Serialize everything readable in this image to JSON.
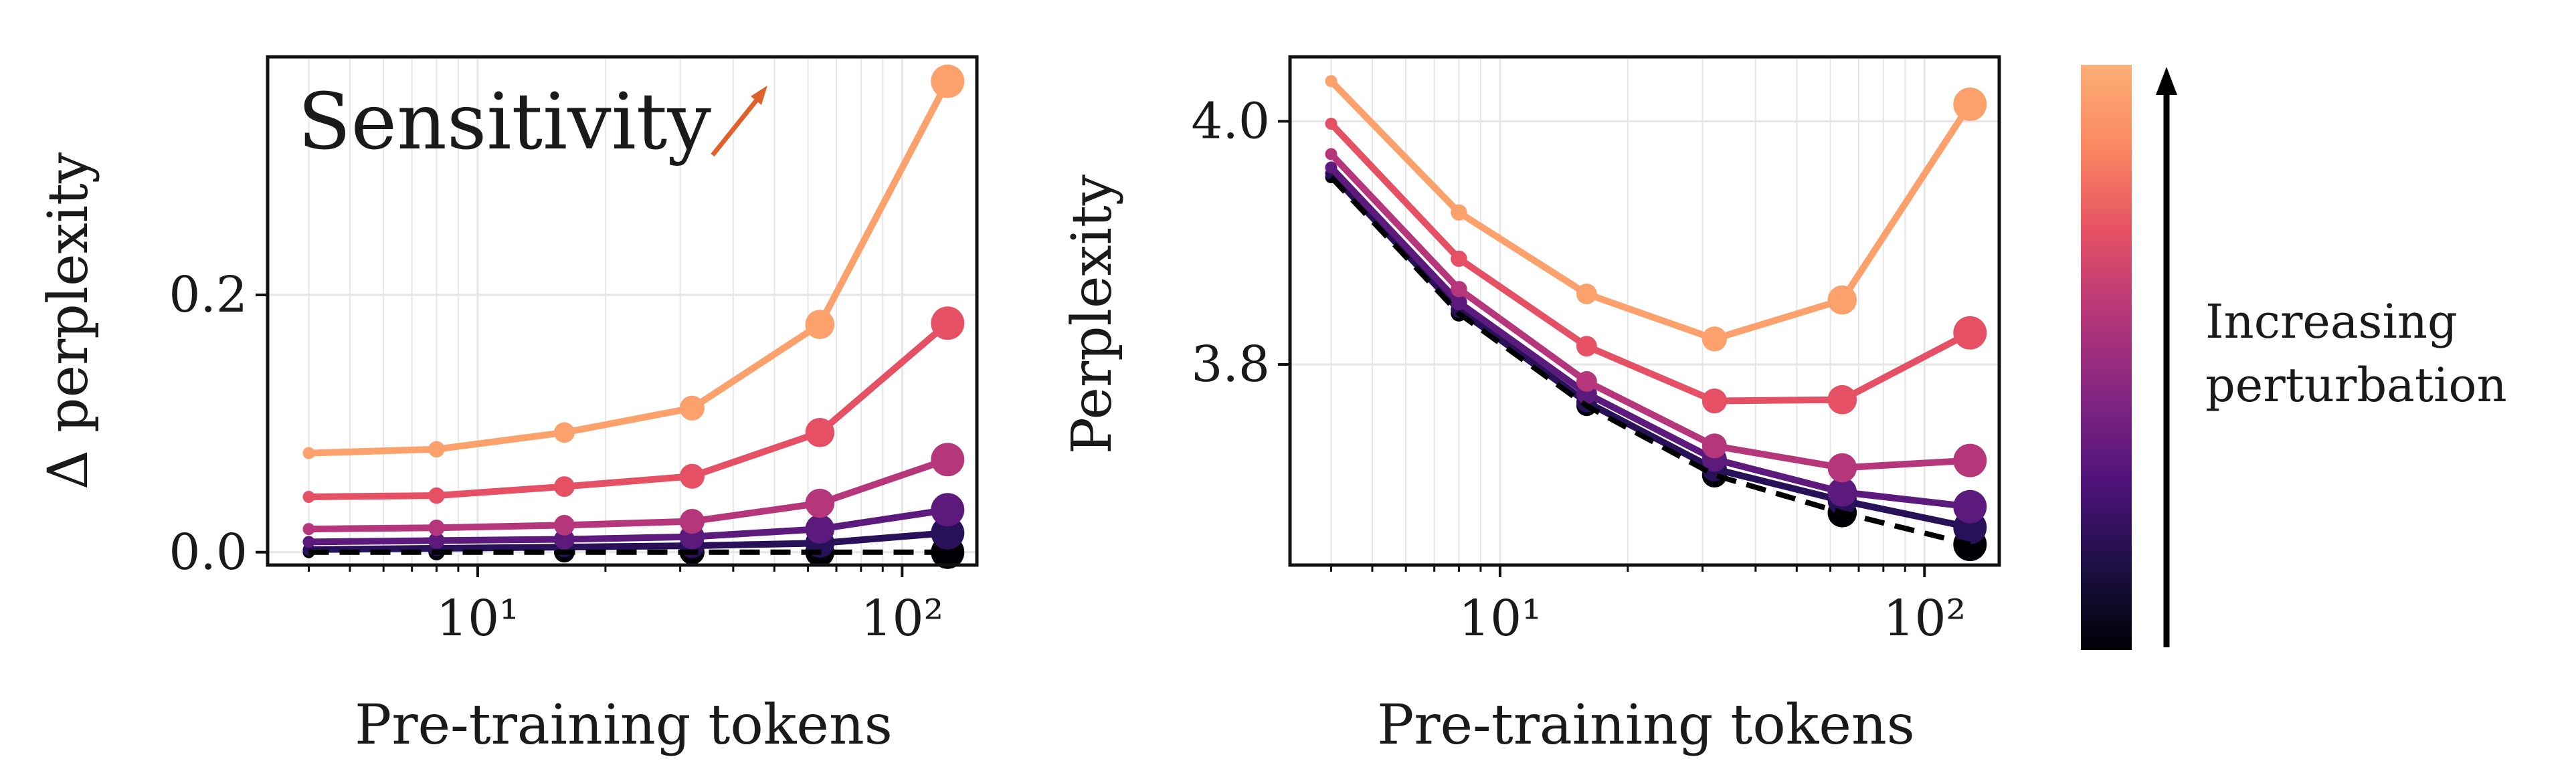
{
  "colors": {
    "sensitivity": "#e0622a",
    "dashed_baseline": "#000000",
    "grid": "#e6e6e6",
    "colorbar": [
      "#000004",
      "#1c1044",
      "#4f127b",
      "#812581",
      "#b5367a",
      "#e55064",
      "#fb8761",
      "#fcae75"
    ]
  },
  "sensitivity_label": "Sensitivity",
  "colorbar_label_line1": "Increasing",
  "colorbar_label_line2": "perturbation",
  "chart_data": [
    {
      "type": "line",
      "xlabel": "Pre-training tokens",
      "ylabel": "Δ perplexity",
      "xscale": "log",
      "xlim": [
        3.2,
        150
      ],
      "ylim": [
        -0.01,
        0.385
      ],
      "xticks": [
        {
          "value": 10,
          "label": "10¹"
        },
        {
          "value": 100,
          "label": "10²"
        }
      ],
      "yticks": [
        {
          "value": 0.0,
          "label": "0.0"
        },
        {
          "value": 0.2,
          "label": "0.2"
        }
      ],
      "grid": true,
      "x": [
        4,
        8,
        16,
        32,
        64,
        128
      ],
      "series": [
        {
          "color": "#000004",
          "dashed": true,
          "values": [
            0.0,
            0.0,
            0.0,
            0.0,
            0.0,
            0.0
          ]
        },
        {
          "color": "#29115a",
          "values": [
            0.002,
            0.003,
            0.004,
            0.005,
            0.007,
            0.015
          ]
        },
        {
          "color": "#5c1a7c",
          "values": [
            0.008,
            0.009,
            0.01,
            0.012,
            0.018,
            0.033
          ]
        },
        {
          "color": "#b5367a",
          "values": [
            0.018,
            0.019,
            0.021,
            0.024,
            0.038,
            0.072
          ]
        },
        {
          "color": "#e55064",
          "values": [
            0.043,
            0.044,
            0.051,
            0.059,
            0.093,
            0.178
          ]
        },
        {
          "color": "#fca06c",
          "values": [
            0.077,
            0.08,
            0.093,
            0.112,
            0.177,
            0.366
          ]
        }
      ]
    },
    {
      "type": "line",
      "xlabel": "Pre-training tokens",
      "ylabel": "Perplexity",
      "xscale": "log",
      "xlim": [
        3.2,
        150
      ],
      "ylim": [
        3.635,
        4.053
      ],
      "xticks": [
        {
          "value": 10,
          "label": "10¹"
        },
        {
          "value": 100,
          "label": "10²"
        }
      ],
      "yticks": [
        {
          "value": 3.8,
          "label": "3.8"
        },
        {
          "value": 4.0,
          "label": "4.0"
        }
      ],
      "grid": true,
      "x": [
        4,
        8,
        16,
        32,
        64,
        128
      ],
      "series": [
        {
          "color": "#000004",
          "dashed": true,
          "values": [
            3.954,
            3.842,
            3.766,
            3.709,
            3.678,
            3.652
          ]
        },
        {
          "color": "#29115a",
          "values": [
            3.957,
            3.845,
            3.769,
            3.714,
            3.688,
            3.666
          ]
        },
        {
          "color": "#5c1a7c",
          "values": [
            3.962,
            3.851,
            3.776,
            3.722,
            3.695,
            3.683
          ]
        },
        {
          "color": "#b5367a",
          "values": [
            3.973,
            3.862,
            3.786,
            3.733,
            3.715,
            3.721
          ]
        },
        {
          "color": "#e55064",
          "values": [
            3.998,
            3.887,
            3.815,
            3.77,
            3.771,
            3.826
          ]
        },
        {
          "color": "#fca06c",
          "values": [
            4.033,
            3.925,
            3.858,
            3.821,
            3.853,
            4.014
          ]
        }
      ]
    }
  ]
}
